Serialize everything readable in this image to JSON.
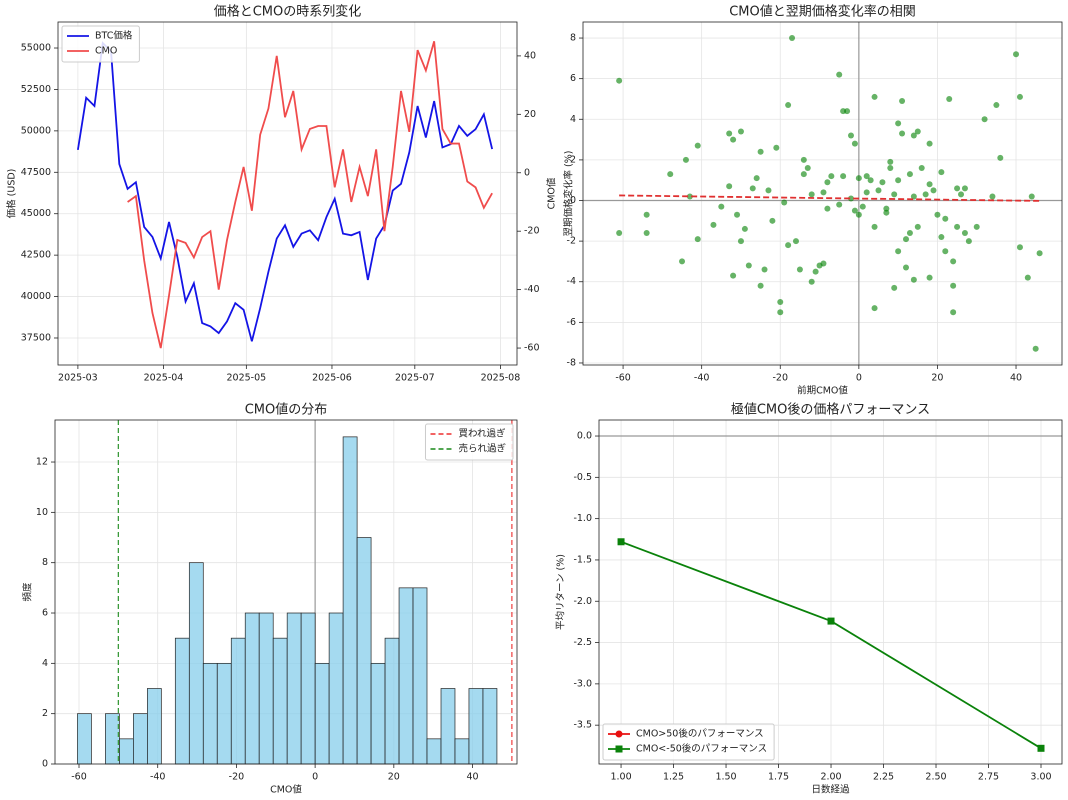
{
  "chart_data": [
    {
      "type": "line",
      "title": "価格とCMOの時系列変化",
      "ylabel": "価格 (USD)",
      "y2label": "CMO値",
      "grid": true,
      "legend": "upper left",
      "x": [
        0,
        3,
        6,
        9,
        12,
        15,
        18,
        21,
        24,
        27,
        30,
        33,
        36,
        39,
        42,
        45,
        48,
        51,
        54,
        57,
        60,
        63,
        66,
        69,
        72,
        75,
        78,
        81,
        84,
        87,
        90,
        93,
        96,
        99,
        102,
        105,
        108,
        111,
        114,
        117,
        120,
        123,
        126,
        129,
        132,
        135,
        138,
        141,
        144,
        147,
        150
      ],
      "xlim": [
        -7.2,
        159
      ],
      "xticks": [
        {
          "value": 0,
          "label": "2025-03"
        },
        {
          "value": 31,
          "label": "2025-04"
        },
        {
          "value": 61,
          "label": "2025-05"
        },
        {
          "value": 92,
          "label": "2025-06"
        },
        {
          "value": 122,
          "label": "2025-07"
        },
        {
          "value": 153,
          "label": "2025-08"
        }
      ],
      "ylim": [
        35870,
        56570
      ],
      "yticks": [
        37500,
        40000,
        42500,
        45000,
        47500,
        50000,
        52500,
        55000
      ],
      "y2lim": [
        -65.8,
        51.6
      ],
      "y2ticks": [
        -60,
        -40,
        -20,
        0,
        20,
        40
      ],
      "series": [
        {
          "name": "BTC価格",
          "color": "#1414e6",
          "values": [
            48850,
            52000,
            51500,
            55300,
            54800,
            48000,
            46500,
            46900,
            44200,
            43600,
            42300,
            44500,
            42400,
            39700,
            40800,
            38400,
            38200,
            37800,
            38500,
            39600,
            39200,
            37300,
            39300,
            41500,
            43500,
            44300,
            43000,
            43800,
            44000,
            43400,
            44800,
            45900,
            43800,
            43700,
            43900,
            41000,
            43500,
            44300,
            46400,
            46800,
            48700,
            51500,
            49600,
            51800,
            49000,
            49200,
            50300,
            49700,
            50100,
            51000,
            48900
          ]
        },
        {
          "name": "CMO",
          "color": "#f04c4c",
          "axis": "y2",
          "values": [
            null,
            null,
            null,
            null,
            null,
            null,
            -10,
            -8,
            -30,
            -48,
            -60,
            -42,
            -23,
            -24,
            -29,
            -22,
            -20,
            -40,
            -23,
            -10,
            2,
            -13,
            13,
            22,
            40,
            19,
            28,
            8,
            15,
            16,
            16,
            -5,
            8,
            -10,
            2,
            -8,
            8,
            -20,
            2,
            28,
            14,
            42,
            35,
            45,
            15,
            10,
            10,
            -3,
            -5,
            -12,
            -7
          ]
        }
      ]
    },
    {
      "type": "scatter",
      "title": "CMO値と翌期価格変化率の相関",
      "xlabel": "前期CMO値",
      "ylabel": "翌期価格変化率 (%)",
      "grid": true,
      "color": "#008000",
      "xlim": [
        -70.2,
        51.7
      ],
      "xticks": [
        -60,
        -40,
        -20,
        0,
        20,
        40
      ],
      "ylim": [
        -8.1,
        8.79
      ],
      "yticks": [
        -8,
        -6,
        -4,
        -2,
        0,
        2,
        4,
        6,
        8
      ],
      "hline": 0,
      "vline": 0,
      "x": [
        -61,
        -61,
        -54,
        -54,
        -48,
        -45,
        -44,
        -43,
        -41,
        -41,
        -37,
        -35,
        -33,
        -33,
        -32,
        -32,
        -31,
        -30,
        -30,
        -29,
        -28,
        -27,
        -26,
        -25,
        -25,
        -24,
        -23,
        -22,
        -21,
        -20,
        -20,
        -19,
        -18,
        -18,
        -17,
        -16,
        -15,
        -14,
        -14,
        -13,
        -12,
        -12,
        -11,
        -10,
        -9,
        -9,
        -8,
        -8,
        -7,
        -5,
        -5,
        -4,
        -4,
        -3,
        -2,
        -2,
        -1,
        -1,
        0,
        0,
        1,
        2,
        2,
        3,
        4,
        4,
        4,
        5,
        6,
        7,
        7,
        8,
        8,
        9,
        9,
        10,
        10,
        10,
        11,
        11,
        12,
        12,
        13,
        13,
        14,
        14,
        14,
        15,
        15,
        16,
        17,
        18,
        18,
        18,
        19,
        20,
        21,
        21,
        22,
        22,
        23,
        24,
        24,
        24,
        25,
        25,
        26,
        27,
        27,
        28,
        30,
        32,
        34,
        35,
        36,
        40,
        41,
        41,
        43,
        44,
        45,
        46
      ],
      "values": [
        5.9,
        -1.6,
        -0.7,
        -1.6,
        1.3,
        -3,
        2,
        0.2,
        2.7,
        -1.9,
        -1.2,
        -0.3,
        3.3,
        0.7,
        3.0,
        -3.7,
        -0.7,
        3.4,
        -2.0,
        -1.4,
        -3.2,
        0.6,
        1.1,
        2.4,
        -4.2,
        -3.4,
        0.5,
        -1.0,
        2.6,
        -5.0,
        -5.5,
        -0.1,
        4.7,
        -2.2,
        8.0,
        -2.0,
        -3.4,
        2.0,
        1.3,
        1.6,
        0.3,
        -4.0,
        -3.5,
        -3.2,
        0.4,
        -3.1,
        0.9,
        -0.4,
        1.2,
        6.2,
        -0.2,
        4.4,
        1.2,
        4.4,
        3.2,
        0.1,
        2.8,
        -0.5,
        1.1,
        -0.7,
        -0.3,
        1.2,
        0.4,
        1.0,
        5.1,
        -1.3,
        -5.3,
        0.5,
        0.9,
        -0.6,
        -0.4,
        1.9,
        1.6,
        0.3,
        -4.3,
        3.8,
        1.0,
        -2.5,
        4.9,
        3.3,
        -1.9,
        -3.3,
        1.3,
        -1.6,
        3.2,
        0.2,
        -3.9,
        3.4,
        -1.3,
        1.6,
        0.3,
        2.8,
        0.8,
        -3.8,
        0.5,
        -0.7,
        1.4,
        -1.8,
        -0.9,
        -2.5,
        5.0,
        -3.0,
        -4.2,
        -5.5,
        0.6,
        -1.3,
        0.3,
        0.6,
        -1.6,
        -2.0,
        -1.3,
        4.0,
        0.2,
        4.7,
        2.1,
        7.2,
        5.1,
        -2.3,
        -3.8,
        0.2,
        -7.3,
        -2.6
      ],
      "trend": {
        "color": "#e03030",
        "x": [
          -61,
          46
        ],
        "values": [
          0.25,
          -0.02
        ]
      }
    },
    {
      "type": "histogram",
      "title": "CMO値の分布",
      "xlabel": "CMO値",
      "ylabel": "頻度",
      "grid": true,
      "color": "#87ceeb",
      "legend": "upper right",
      "xlim": [
        -66.1,
        51.3
      ],
      "xticks": [
        -60,
        -40,
        -20,
        0,
        20,
        40
      ],
      "ylim": [
        0,
        13.67
      ],
      "yticks": [
        0,
        2,
        4,
        6,
        8,
        10,
        12
      ],
      "bins": [
        -60.4,
        -56.85,
        -53.29,
        -49.74,
        -46.19,
        -42.63,
        -39.08,
        -35.53,
        -31.97,
        -28.42,
        -24.87,
        -21.31,
        -17.76,
        -14.21,
        -10.65,
        -7.1,
        -3.55,
        0.01,
        3.56,
        7.11,
        10.67,
        14.22,
        17.77,
        21.33,
        24.88,
        28.43,
        31.99,
        35.54,
        39.09,
        42.65,
        46.2
      ],
      "counts": [
        2,
        0,
        2,
        1,
        2,
        3,
        0,
        5,
        8,
        4,
        4,
        5,
        6,
        6,
        5,
        6,
        6,
        4,
        6,
        13,
        9,
        4,
        5,
        7,
        7,
        1,
        3,
        1,
        3,
        3
      ],
      "vline": 0,
      "vlines": [
        {
          "name": "買われ過ぎ",
          "value": 50,
          "color": "#f04c4c"
        },
        {
          "name": "売られ過ぎ",
          "value": -50,
          "color": "#3a9a3a"
        }
      ]
    },
    {
      "type": "line",
      "title": "極値CMO後の価格パフォーマンス",
      "xlabel": "日数経過",
      "ylabel": "平均リターン (%)",
      "grid": true,
      "legend": "lower left",
      "x": [
        1,
        2,
        3
      ],
      "xlim": [
        0.895,
        3.1
      ],
      "xticks": [
        {
          "value": 1,
          "label": "1.00"
        },
        {
          "value": 1.25,
          "label": "1.25"
        },
        {
          "value": 1.5,
          "label": "1.50"
        },
        {
          "value": 1.75,
          "label": "1.75"
        },
        {
          "value": 2,
          "label": "2.00"
        },
        {
          "value": 2.25,
          "label": "2.25"
        },
        {
          "value": 2.5,
          "label": "2.50"
        },
        {
          "value": 2.75,
          "label": "2.75"
        },
        {
          "value": 3,
          "label": "3.00"
        }
      ],
      "ylim": [
        -3.97,
        0.194
      ],
      "yticks": [
        {
          "value": 0,
          "label": "0.0"
        },
        -0.5,
        {
          "value": -1,
          "label": "-1.0"
        },
        -1.5,
        {
          "value": -2,
          "label": "-2.0"
        },
        -2.5,
        {
          "value": -3,
          "label": "-3.0"
        },
        -3.5
      ],
      "hline": 0,
      "series": [
        {
          "name": "CMO>50後のパフォーマンス",
          "color": "#e81010",
          "marker": "o",
          "values": [
            null,
            null,
            null
          ]
        },
        {
          "name": "CMO<-50後のパフォーマンス",
          "color": "#0a820a",
          "marker": "s",
          "values": [
            -1.28,
            -2.24,
            -3.78
          ]
        }
      ]
    }
  ]
}
